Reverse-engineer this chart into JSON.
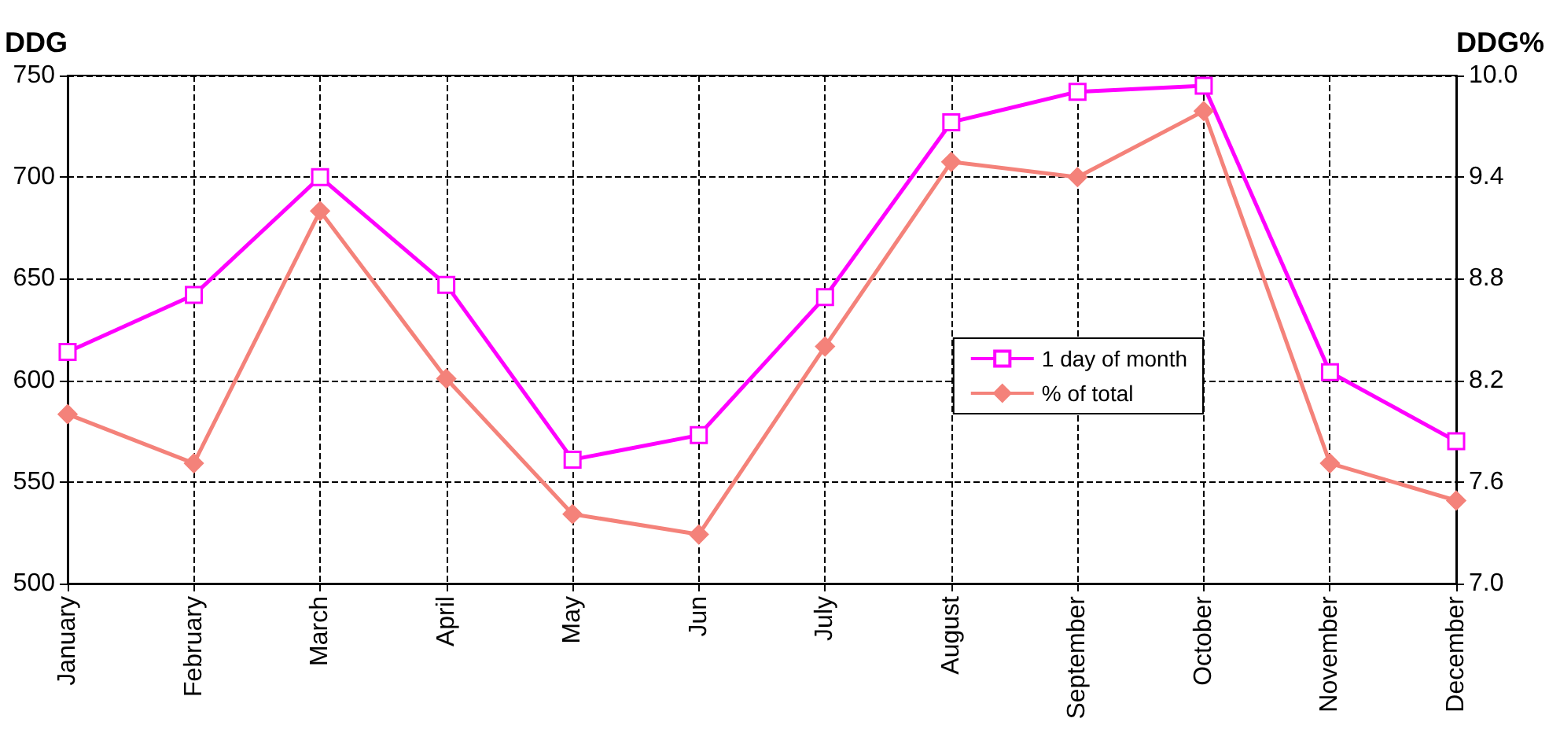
{
  "chart_data": {
    "type": "line",
    "ylabel": "DDG",
    "y2label": "DDG%",
    "categories": [
      "January",
      "February",
      "March",
      "April",
      "May",
      "Jun",
      "July",
      "August",
      "September",
      "October",
      "November",
      "December"
    ],
    "series": [
      {
        "name": "1 day of month",
        "color": "#ff00ff",
        "marker": "square",
        "values": [
          614,
          642,
          700,
          647,
          561,
          573,
          641,
          727,
          742,
          745,
          604,
          570
        ]
      },
      {
        "name": "% of total",
        "color": "#f4827a",
        "marker": "diamond",
        "axis": "y2",
        "values": [
          8.0,
          7.71,
          9.2,
          8.21,
          7.41,
          7.29,
          8.4,
          9.49,
          9.4,
          9.79,
          7.71,
          7.49
        ]
      }
    ],
    "ylim": [
      500,
      750
    ],
    "yticks": [
      500,
      550,
      600,
      650,
      700,
      750
    ],
    "y2lim": [
      7,
      10
    ],
    "y2ticks": [
      {
        "value": 7,
        "label": "7.0"
      },
      7.6,
      8.2,
      8.8,
      9.4,
      {
        "value": 10,
        "label": "10.0"
      }
    ],
    "grid": true,
    "legend": "right",
    "line_style": "solid"
  }
}
